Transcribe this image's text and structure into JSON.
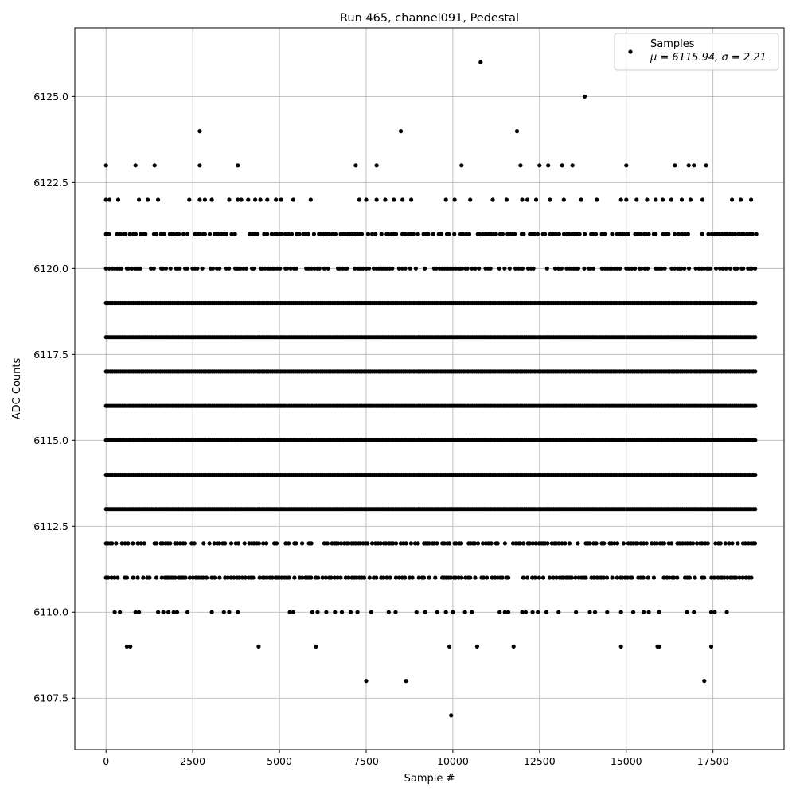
{
  "chart_data": {
    "type": "scatter",
    "title": "Run 465, channel091, Pedestal",
    "xlabel": "Sample #",
    "ylabel": "ADC Counts",
    "xlim": [
      -900,
      19550
    ],
    "ylim": [
      6106.0,
      6127.0
    ],
    "grid": true,
    "legend_position": "top-right",
    "marker_color": "#000000",
    "x_ticks": [
      0,
      2500,
      5000,
      7500,
      10000,
      12500,
      15000,
      17500
    ],
    "x_tick_labels": [
      "0",
      "2500",
      "5000",
      "7500",
      "10000",
      "12500",
      "15000",
      "17500"
    ],
    "y_ticks": [
      6107.5,
      6110.0,
      6112.5,
      6115.0,
      6117.5,
      6120.0,
      6122.5,
      6125.0
    ],
    "y_tick_labels": [
      "6107.5",
      "6110.0",
      "6112.5",
      "6115.0",
      "6117.5",
      "6120.0",
      "6122.5",
      "6125.0"
    ],
    "series": [
      {
        "name": "Samples",
        "stats_label": "μ = 6115.94, σ = 2.21",
        "n_samples": 18750,
        "dense_levels": [
          6113,
          6114,
          6115,
          6116,
          6117,
          6118,
          6119
        ],
        "medium_levels": [
          6111,
          6112,
          6120,
          6121
        ],
        "points": [
          {
            "x": 0,
            "y": 6123
          },
          {
            "x": 850,
            "y": 6123
          },
          {
            "x": 1400,
            "y": 6123
          },
          {
            "x": 2700,
            "y": 6123
          },
          {
            "x": 3800,
            "y": 6123
          },
          {
            "x": 7200,
            "y": 6123
          },
          {
            "x": 7800,
            "y": 6123
          },
          {
            "x": 10250,
            "y": 6123
          },
          {
            "x": 11950,
            "y": 6123
          },
          {
            "x": 12500,
            "y": 6123
          },
          {
            "x": 12750,
            "y": 6123
          },
          {
            "x": 13150,
            "y": 6123
          },
          {
            "x": 13450,
            "y": 6123
          },
          {
            "x": 15000,
            "y": 6123
          },
          {
            "x": 16400,
            "y": 6123
          },
          {
            "x": 16800,
            "y": 6123
          },
          {
            "x": 16950,
            "y": 6123
          },
          {
            "x": 17300,
            "y": 6123
          },
          {
            "x": 2700,
            "y": 6124
          },
          {
            "x": 8500,
            "y": 6124
          },
          {
            "x": 11850,
            "y": 6124
          },
          {
            "x": 13800,
            "y": 6125
          },
          {
            "x": 10800,
            "y": 6126
          },
          {
            "x": 700,
            "y": 6109
          },
          {
            "x": 600,
            "y": 6109
          },
          {
            "x": 4400,
            "y": 6109
          },
          {
            "x": 6050,
            "y": 6109
          },
          {
            "x": 9900,
            "y": 6109
          },
          {
            "x": 10700,
            "y": 6109
          },
          {
            "x": 11750,
            "y": 6109
          },
          {
            "x": 14850,
            "y": 6109
          },
          {
            "x": 15900,
            "y": 6109
          },
          {
            "x": 15950,
            "y": 6109
          },
          {
            "x": 17450,
            "y": 6109
          },
          {
            "x": 7500,
            "y": 6108
          },
          {
            "x": 8650,
            "y": 6108
          },
          {
            "x": 17250,
            "y": 6108
          },
          {
            "x": 9950,
            "y": 6107
          },
          {
            "x": 250,
            "y": 6110
          },
          {
            "x": 400,
            "y": 6110
          },
          {
            "x": 850,
            "y": 6110
          },
          {
            "x": 950,
            "y": 6110
          },
          {
            "x": 1500,
            "y": 6110
          },
          {
            "x": 1650,
            "y": 6110
          },
          {
            "x": 1800,
            "y": 6110
          },
          {
            "x": 1950,
            "y": 6110
          },
          {
            "x": 2050,
            "y": 6110
          },
          {
            "x": 2350,
            "y": 6110
          },
          {
            "x": 3050,
            "y": 6110
          },
          {
            "x": 3400,
            "y": 6110
          },
          {
            "x": 3550,
            "y": 6110
          },
          {
            "x": 3800,
            "y": 6110
          },
          {
            "x": 5300,
            "y": 6110
          },
          {
            "x": 5400,
            "y": 6110
          },
          {
            "x": 5950,
            "y": 6110
          },
          {
            "x": 6100,
            "y": 6110
          },
          {
            "x": 6350,
            "y": 6110
          },
          {
            "x": 6600,
            "y": 6110
          },
          {
            "x": 6800,
            "y": 6110
          },
          {
            "x": 7050,
            "y": 6110
          },
          {
            "x": 7250,
            "y": 6110
          },
          {
            "x": 7650,
            "y": 6110
          },
          {
            "x": 8150,
            "y": 6110
          },
          {
            "x": 8350,
            "y": 6110
          },
          {
            "x": 8950,
            "y": 6110
          },
          {
            "x": 9200,
            "y": 6110
          },
          {
            "x": 9550,
            "y": 6110
          },
          {
            "x": 9800,
            "y": 6110
          },
          {
            "x": 10000,
            "y": 6110
          },
          {
            "x": 10350,
            "y": 6110
          },
          {
            "x": 10550,
            "y": 6110
          },
          {
            "x": 11350,
            "y": 6110
          },
          {
            "x": 11500,
            "y": 6110
          },
          {
            "x": 11600,
            "y": 6110
          },
          {
            "x": 12000,
            "y": 6110
          },
          {
            "x": 12100,
            "y": 6110
          },
          {
            "x": 12300,
            "y": 6110
          },
          {
            "x": 12450,
            "y": 6110
          },
          {
            "x": 12700,
            "y": 6110
          },
          {
            "x": 13050,
            "y": 6110
          },
          {
            "x": 13550,
            "y": 6110
          },
          {
            "x": 13950,
            "y": 6110
          },
          {
            "x": 14100,
            "y": 6110
          },
          {
            "x": 14450,
            "y": 6110
          },
          {
            "x": 14850,
            "y": 6110
          },
          {
            "x": 15200,
            "y": 6110
          },
          {
            "x": 15500,
            "y": 6110
          },
          {
            "x": 15650,
            "y": 6110
          },
          {
            "x": 15950,
            "y": 6110
          },
          {
            "x": 16750,
            "y": 6110
          },
          {
            "x": 16950,
            "y": 6110
          },
          {
            "x": 17450,
            "y": 6110
          },
          {
            "x": 17550,
            "y": 6110
          },
          {
            "x": 17900,
            "y": 6110
          },
          {
            "x": 0,
            "y": 6122
          },
          {
            "x": 100,
            "y": 6122
          },
          {
            "x": 350,
            "y": 6122
          },
          {
            "x": 950,
            "y": 6122
          },
          {
            "x": 1200,
            "y": 6122
          },
          {
            "x": 1500,
            "y": 6122
          },
          {
            "x": 2400,
            "y": 6122
          },
          {
            "x": 2700,
            "y": 6122
          },
          {
            "x": 2850,
            "y": 6122
          },
          {
            "x": 3050,
            "y": 6122
          },
          {
            "x": 3550,
            "y": 6122
          },
          {
            "x": 3800,
            "y": 6122
          },
          {
            "x": 3900,
            "y": 6122
          },
          {
            "x": 4100,
            "y": 6122
          },
          {
            "x": 4300,
            "y": 6122
          },
          {
            "x": 4450,
            "y": 6122
          },
          {
            "x": 4650,
            "y": 6122
          },
          {
            "x": 4900,
            "y": 6122
          },
          {
            "x": 5050,
            "y": 6122
          },
          {
            "x": 5400,
            "y": 6122
          },
          {
            "x": 5900,
            "y": 6122
          },
          {
            "x": 7300,
            "y": 6122
          },
          {
            "x": 7500,
            "y": 6122
          },
          {
            "x": 7800,
            "y": 6122
          },
          {
            "x": 8050,
            "y": 6122
          },
          {
            "x": 8300,
            "y": 6122
          },
          {
            "x": 8550,
            "y": 6122
          },
          {
            "x": 8800,
            "y": 6122
          },
          {
            "x": 9800,
            "y": 6122
          },
          {
            "x": 10050,
            "y": 6122
          },
          {
            "x": 10500,
            "y": 6122
          },
          {
            "x": 11150,
            "y": 6122
          },
          {
            "x": 11550,
            "y": 6122
          },
          {
            "x": 12000,
            "y": 6122
          },
          {
            "x": 12150,
            "y": 6122
          },
          {
            "x": 12400,
            "y": 6122
          },
          {
            "x": 12800,
            "y": 6122
          },
          {
            "x": 13200,
            "y": 6122
          },
          {
            "x": 13700,
            "y": 6122
          },
          {
            "x": 14150,
            "y": 6122
          },
          {
            "x": 14850,
            "y": 6122
          },
          {
            "x": 15000,
            "y": 6122
          },
          {
            "x": 15300,
            "y": 6122
          },
          {
            "x": 15600,
            "y": 6122
          },
          {
            "x": 15850,
            "y": 6122
          },
          {
            "x": 16050,
            "y": 6122
          },
          {
            "x": 16300,
            "y": 6122
          },
          {
            "x": 16600,
            "y": 6122
          },
          {
            "x": 16850,
            "y": 6122
          },
          {
            "x": 17200,
            "y": 6122
          },
          {
            "x": 18050,
            "y": 6122
          },
          {
            "x": 18300,
            "y": 6122
          },
          {
            "x": 18600,
            "y": 6122
          }
        ]
      }
    ]
  }
}
